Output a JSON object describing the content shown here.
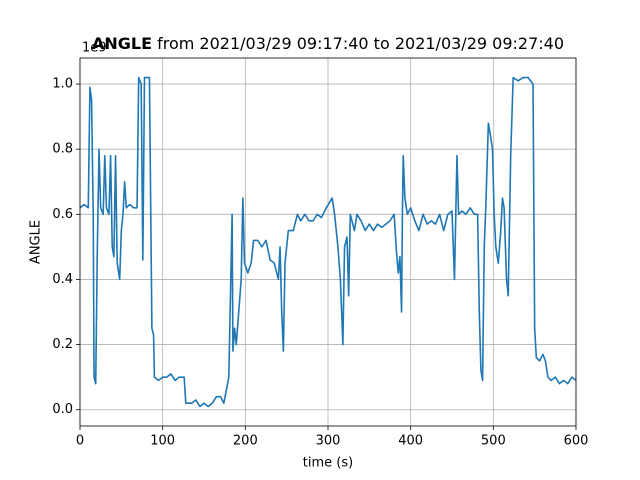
{
  "chart_data": {
    "type": "line",
    "title_bold": "ANGLE",
    "title": "from 2021/03/29 09:17:40 to 2021/03/29 09:27:40",
    "x_label": "time (s)",
    "y_label": "ANGLE",
    "y_offset_label": "1e9",
    "xlim": [
      0,
      600
    ],
    "ylim": [
      -0.05,
      1.08
    ],
    "xticks": [
      0,
      100,
      200,
      300,
      400,
      500,
      600
    ],
    "yticks": [
      {
        "value": 0,
        "label": "0.0"
      },
      0.2,
      0.4,
      0.6,
      0.8,
      {
        "value": 1,
        "label": "1.0"
      }
    ],
    "grid": true,
    "x": [
      0,
      5,
      10,
      12,
      14,
      16,
      17,
      19,
      21,
      23,
      25,
      28,
      30,
      32,
      35,
      37,
      39,
      41,
      43,
      45,
      48,
      50,
      52,
      54,
      56,
      60,
      65,
      69,
      71,
      74,
      76,
      78,
      84,
      86,
      87,
      89,
      90,
      95,
      100,
      105,
      110,
      115,
      120,
      126,
      128,
      135,
      140,
      145,
      150,
      155,
      160,
      165,
      170,
      174,
      177,
      180,
      184,
      185,
      187,
      189,
      192,
      195,
      197,
      199,
      203,
      207,
      210,
      215,
      220,
      225,
      230,
      235,
      240,
      242,
      244,
      246,
      248,
      252,
      258,
      263,
      267,
      272,
      277,
      282,
      287,
      292,
      298,
      305,
      308,
      312,
      315,
      318,
      320,
      323,
      325,
      327,
      332,
      335,
      340,
      345,
      350,
      355,
      360,
      365,
      370,
      375,
      380,
      383,
      385,
      387,
      389,
      390,
      391,
      393,
      396,
      400,
      405,
      410,
      415,
      420,
      425,
      430,
      435,
      440,
      445,
      450,
      453,
      456,
      458,
      462,
      467,
      472,
      477,
      481,
      483,
      485,
      487,
      489,
      491,
      494,
      496,
      499,
      501,
      503,
      506,
      509,
      511,
      513,
      516,
      518,
      521,
      524,
      530,
      536,
      542,
      548,
      550,
      552,
      556,
      560,
      563,
      566,
      570,
      575,
      580,
      585,
      590,
      595,
      600
    ],
    "series": [
      {
        "name": "ANGLE",
        "color": "#1f77b4",
        "values": [
          0.62,
          0.63,
          0.62,
          0.99,
          0.95,
          0.6,
          0.1,
          0.08,
          0.5,
          0.8,
          0.62,
          0.6,
          0.78,
          0.62,
          0.6,
          0.78,
          0.5,
          0.47,
          0.78,
          0.45,
          0.4,
          0.55,
          0.6,
          0.7,
          0.62,
          0.63,
          0.62,
          0.62,
          1.02,
          1.0,
          0.46,
          1.02,
          1.02,
          0.5,
          0.25,
          0.23,
          0.1,
          0.09,
          0.1,
          0.1,
          0.11,
          0.09,
          0.1,
          0.1,
          0.02,
          0.02,
          0.03,
          0.01,
          0.02,
          0.01,
          0.02,
          0.04,
          0.04,
          0.02,
          0.06,
          0.1,
          0.6,
          0.18,
          0.25,
          0.2,
          0.3,
          0.4,
          0.65,
          0.45,
          0.42,
          0.45,
          0.52,
          0.52,
          0.5,
          0.52,
          0.46,
          0.45,
          0.4,
          0.5,
          0.3,
          0.18,
          0.45,
          0.55,
          0.55,
          0.6,
          0.58,
          0.6,
          0.58,
          0.58,
          0.6,
          0.59,
          0.62,
          0.65,
          0.6,
          0.5,
          0.4,
          0.2,
          0.5,
          0.53,
          0.35,
          0.6,
          0.55,
          0.6,
          0.58,
          0.55,
          0.57,
          0.55,
          0.57,
          0.56,
          0.57,
          0.58,
          0.6,
          0.48,
          0.42,
          0.47,
          0.3,
          0.6,
          0.78,
          0.65,
          0.6,
          0.62,
          0.58,
          0.55,
          0.6,
          0.57,
          0.58,
          0.57,
          0.6,
          0.55,
          0.6,
          0.61,
          0.4,
          0.78,
          0.6,
          0.61,
          0.6,
          0.62,
          0.6,
          0.6,
          0.3,
          0.12,
          0.09,
          0.5,
          0.63,
          0.88,
          0.85,
          0.8,
          0.6,
          0.5,
          0.45,
          0.55,
          0.65,
          0.62,
          0.4,
          0.35,
          0.78,
          1.02,
          1.01,
          1.02,
          1.02,
          1.0,
          0.25,
          0.16,
          0.15,
          0.17,
          0.15,
          0.1,
          0.09,
          0.1,
          0.08,
          0.09,
          0.08,
          0.1,
          0.09
        ]
      }
    ]
  }
}
